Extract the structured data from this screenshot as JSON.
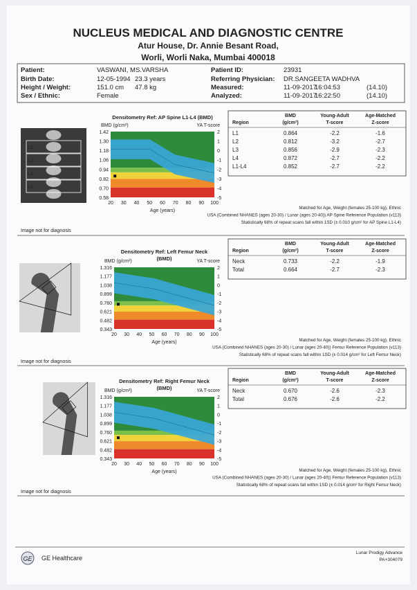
{
  "header": {
    "title": "NUCLEUS MEDICAL AND DIAGNOSTIC CENTRE",
    "address_line_1": "Atur House, Dr. Annie Besant Road,",
    "address_line_2": "Worli, Worli Naka, Mumbai 400018"
  },
  "patient": {
    "left": [
      {
        "label": "Patient:",
        "values": [
          "VASWANI, MS.VARSHA"
        ]
      },
      {
        "label": "Birth Date:",
        "values": [
          "12-05-1994",
          "23.3 years"
        ]
      },
      {
        "label": "Height / Weight:",
        "values": [
          "151.0 cm",
          "47.8 kg"
        ]
      },
      {
        "label": "Sex / Ethnic:",
        "values": [
          "Female"
        ]
      }
    ],
    "right": [
      {
        "label": "Patient ID:",
        "values": [
          "23931"
        ]
      },
      {
        "label": "Referring Physician:",
        "values": [
          "DR.SANGEETA WADHVA"
        ]
      },
      {
        "label": "Measured:",
        "values": [
          "11-09-2017",
          "16:04:53",
          "(14.10)"
        ]
      },
      {
        "label": "Analyzed:",
        "values": [
          "11-09-2017",
          "16:22:50",
          "(14.10)"
        ]
      }
    ]
  },
  "sections": [
    {
      "chart_title": [
        "Densitometry Ref: AP Spine L1-L4 (BMD)"
      ],
      "y_axis_label": "BMD (g/cm²)",
      "t_axis_label": "YA T-score",
      "yticks": [
        "1.42",
        "1.30",
        "1.18",
        "1.06",
        "0.94",
        "0.82",
        "0.70",
        "0.58"
      ],
      "tticks": [
        "2",
        "1",
        "0",
        "-1",
        "-2",
        "-3",
        "-4",
        "-5"
      ],
      "xticks": [
        "20",
        "30",
        "40",
        "50",
        "60",
        "70",
        "80",
        "90",
        "100"
      ],
      "x_label": "Age (years)",
      "image_labels": [
        "L1",
        "L2",
        "L3",
        "L4"
      ],
      "table": {
        "header": [
          [
            "Region"
          ],
          [
            "BMD",
            "(g/cm²)"
          ],
          [
            "Young-Adult",
            "T-score"
          ],
          [
            "Age-Matched",
            "Z-score"
          ]
        ],
        "rows": [
          [
            "L1",
            "0.864",
            "-2.2",
            "-1.6"
          ],
          [
            "L2",
            "0.812",
            "-3.2",
            "-2.7"
          ],
          [
            "L3",
            "0.856",
            "-2.9",
            "-2.3"
          ],
          [
            "L4",
            "0.872",
            "-2.7",
            "-2.2"
          ],
          [
            "L1-L4",
            "0.852",
            "-2.7",
            "-2.2"
          ]
        ]
      },
      "notes": [
        "Matched for Age, Weight (females 25-100 kg), Ethnic",
        "USA (Combined NHANES (ages 20-30) / Lunar (ages 20-40)) AP Spine Reference Population (v113)",
        "Statistically 68% of repeat scans fall within 1SD (± 0.010 g/cm² for AP Spine L1-L4)"
      ],
      "disclaimer": "Image not for diagnosis"
    },
    {
      "chart_title": [
        "Densitometry Ref: Left Femur Neck",
        "(BMD)"
      ],
      "y_axis_label": "BMD (g/cm²)",
      "t_axis_label": "YA T-score",
      "yticks": [
        "1.316",
        "1.177",
        "1.038",
        "0.899",
        "0.760",
        "0.621",
        "0.482",
        "0.343"
      ],
      "tticks": [
        "2",
        "1",
        "0",
        "-1",
        "-2",
        "-3",
        "-4",
        "-5"
      ],
      "xticks": [
        "20",
        "30",
        "40",
        "50",
        "60",
        "70",
        "80",
        "90",
        "100"
      ],
      "x_label": "Age (years)",
      "image_labels": [],
      "table": {
        "header": [
          [
            "Region"
          ],
          [
            "BMD",
            "(g/cm²)"
          ],
          [
            "Young-Adult",
            "T-score"
          ],
          [
            "Age-Matched",
            "Z-score"
          ]
        ],
        "rows": [
          [
            "Neck",
            "0.733",
            "-2.2",
            "-1.9"
          ],
          [
            "Total",
            "0.664",
            "-2.7",
            "-2.3"
          ]
        ]
      },
      "notes": [
        "Matched for Age, Weight (females 25-100 kg), Ethnic",
        "USA (Combined NHANES (ages 20-30) / Lunar (ages 20-40)) Femur Reference Population (v113)",
        "Statistically 68% of repeat scans fall within 1SD (± 0.014 g/cm² for Left Femur Neck)"
      ],
      "disclaimer": "Image not for diagnosis"
    },
    {
      "chart_title": [
        "Densitometry Ref: Right Femur Neck",
        "(BMD)"
      ],
      "y_axis_label": "BMD (g/cm²)",
      "t_axis_label": "YA T-score",
      "yticks": [
        "1.316",
        "1.177",
        "1.038",
        "0.899",
        "0.760",
        "0.621",
        "0.482",
        "0.343"
      ],
      "tticks": [
        "2",
        "1",
        "0",
        "-1",
        "-2",
        "-3",
        "-4",
        "-5"
      ],
      "xticks": [
        "20",
        "30",
        "40",
        "50",
        "60",
        "70",
        "80",
        "90",
        "100"
      ],
      "x_label": "Age (years)",
      "image_labels": [],
      "table": {
        "header": [
          [
            "Region"
          ],
          [
            "BMD",
            "(g/cm²)"
          ],
          [
            "Young-Adult",
            "T-score"
          ],
          [
            "Age-Matched",
            "Z-score"
          ]
        ],
        "rows": [
          [
            "Neck",
            "0.670",
            "-2.6",
            "-2.3"
          ],
          [
            "Total",
            "0.676",
            "-2.6",
            "-2.2"
          ]
        ]
      },
      "notes": [
        "Matched for Age, Weight (females 25-100 kg), Ethnic",
        "USA (Combined NHANES (ages 20-30) / Lunar (ages 20-40)) Femur Reference Population (v113)",
        "Statistically 68% of repeat scans fall within 1SD (± 0.014 g/cm² for Right Femur Neck)"
      ],
      "disclaimer": "Image not for diagnosis"
    }
  ],
  "footer": {
    "brand": "GE Healthcare",
    "device": "Lunar Prodigy Advance",
    "code": "PA+304079"
  }
}
